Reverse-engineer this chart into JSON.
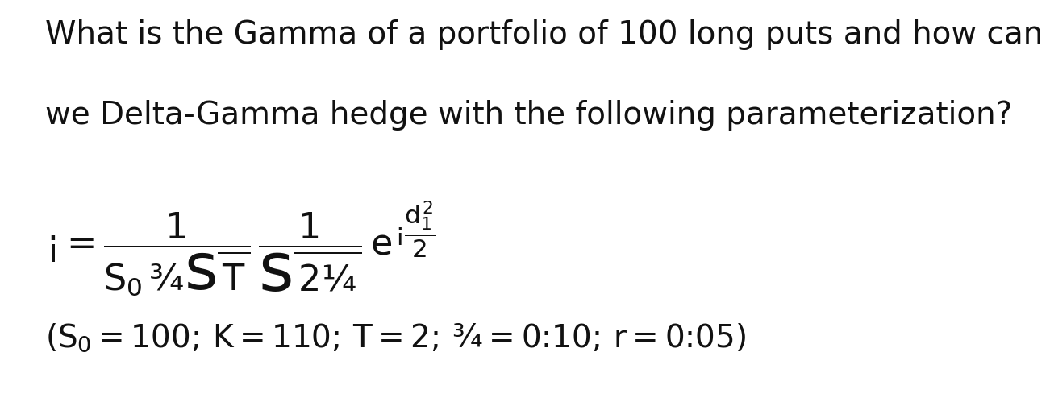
{
  "background_color": "#ffffff",
  "text_line1": "What is the Gamma of a portfolio of 100 long puts and how can",
  "text_line2": "we Delta-Gamma hedge with the following parameterization?",
  "formula": "$\\Gamma = \\dfrac{1}{S_0\\,\\sigma\\sqrt{T}}\\,\\dfrac{1}{\\sqrt{2\\pi}}\\,e^{-\\dfrac{d_1^2}{2}}$",
  "params": "$(S_0 = 100,\\, K = 110,\\, T = 2,\\, \\sigma = 0.10,\\, r = 0.05)$",
  "text_fontsize": 28,
  "formula_fontsize": 32,
  "params_fontsize": 28,
  "text_color": "#111111",
  "figwidth": 12.0,
  "figheight": 4.75
}
